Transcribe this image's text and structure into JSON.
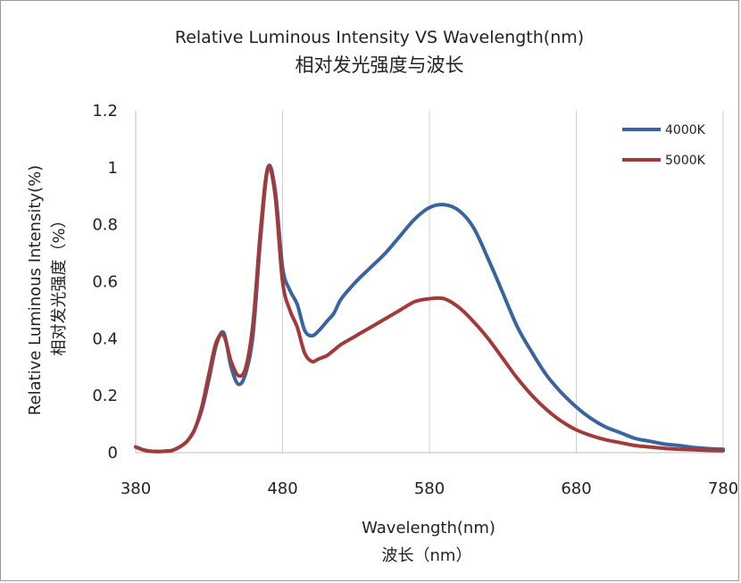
{
  "chart_data": {
    "type": "line",
    "title": "Relative Luminous Intensity VS Wavelength(nm)",
    "subtitle": "相对发光强度与波长",
    "xlabel": "Wavelength(nm)",
    "xlabel_cn": "波长（nm）",
    "ylabel": "Relative Luminous Intensity(%)",
    "ylabel_cn": "相对发光强度（%）",
    "xlim": [
      380,
      780
    ],
    "ylim": [
      0,
      1.2
    ],
    "xticks": [
      380,
      480,
      580,
      680,
      780
    ],
    "yticks": [
      0,
      0.2,
      0.4,
      0.6,
      0.8,
      1,
      1.2
    ],
    "xtick_labels": [
      "380",
      "480",
      "580",
      "680",
      "780"
    ],
    "ytick_labels": [
      "0",
      "0.2",
      "0.4",
      "0.6",
      "0.8",
      "1",
      "1.2"
    ],
    "grid": "vertical",
    "legend_position": "top-right",
    "series": [
      {
        "name": "4000K",
        "color": "#3a64a0",
        "x": [
          380,
          385,
          390,
          395,
          400,
          405,
          410,
          415,
          420,
          425,
          430,
          435,
          440,
          445,
          450,
          455,
          460,
          465,
          470,
          475,
          480,
          485,
          490,
          495,
          500,
          505,
          510,
          515,
          520,
          530,
          540,
          550,
          560,
          570,
          580,
          590,
          600,
          610,
          620,
          630,
          640,
          650,
          660,
          670,
          680,
          690,
          700,
          710,
          720,
          730,
          740,
          750,
          760,
          770,
          780
        ],
        "y": [
          0.02,
          0.01,
          0.005,
          0.004,
          0.005,
          0.008,
          0.02,
          0.04,
          0.08,
          0.15,
          0.26,
          0.38,
          0.42,
          0.3,
          0.24,
          0.28,
          0.42,
          0.75,
          1.0,
          0.92,
          0.65,
          0.57,
          0.52,
          0.43,
          0.41,
          0.43,
          0.46,
          0.49,
          0.54,
          0.6,
          0.65,
          0.7,
          0.76,
          0.82,
          0.86,
          0.87,
          0.85,
          0.79,
          0.68,
          0.56,
          0.44,
          0.35,
          0.27,
          0.21,
          0.16,
          0.12,
          0.09,
          0.07,
          0.05,
          0.04,
          0.03,
          0.025,
          0.018,
          0.014,
          0.012
        ]
      },
      {
        "name": "5000K",
        "color": "#a33a3a",
        "x": [
          380,
          385,
          390,
          395,
          400,
          405,
          410,
          415,
          420,
          425,
          430,
          435,
          440,
          445,
          450,
          455,
          460,
          465,
          470,
          475,
          480,
          485,
          490,
          495,
          500,
          505,
          510,
          515,
          520,
          530,
          540,
          550,
          560,
          570,
          580,
          590,
          600,
          610,
          620,
          630,
          640,
          650,
          660,
          670,
          680,
          690,
          700,
          710,
          720,
          730,
          740,
          750,
          760,
          770,
          780
        ],
        "y": [
          0.02,
          0.01,
          0.005,
          0.004,
          0.005,
          0.008,
          0.02,
          0.04,
          0.08,
          0.16,
          0.28,
          0.39,
          0.41,
          0.32,
          0.27,
          0.3,
          0.46,
          0.78,
          1.0,
          0.9,
          0.6,
          0.5,
          0.44,
          0.35,
          0.32,
          0.33,
          0.34,
          0.36,
          0.38,
          0.41,
          0.44,
          0.47,
          0.5,
          0.53,
          0.54,
          0.54,
          0.51,
          0.46,
          0.4,
          0.33,
          0.26,
          0.2,
          0.15,
          0.11,
          0.08,
          0.06,
          0.045,
          0.035,
          0.025,
          0.02,
          0.015,
          0.012,
          0.01,
          0.008,
          0.007
        ]
      }
    ]
  }
}
